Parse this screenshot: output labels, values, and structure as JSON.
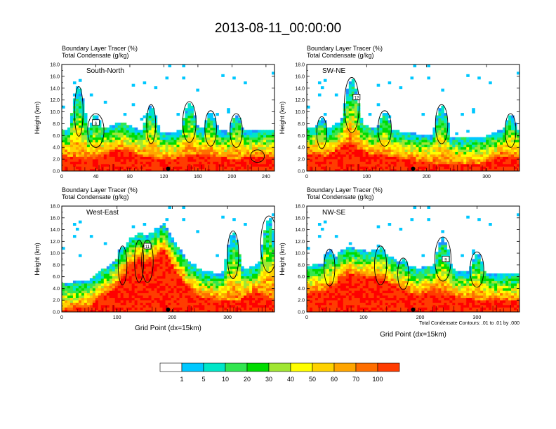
{
  "title": "2013-08-11_00:00:00",
  "colors": {
    "levels": [
      "#ffffff",
      "#1e90ff",
      "#00c8ff",
      "#00e6c8",
      "#32e650",
      "#00dc00",
      "#a0e632",
      "#ffff00",
      "#ffd200",
      "#ffa500",
      "#ff6e00",
      "#ff3c00",
      "#ff0000"
    ],
    "contour": "#000000",
    "background": "#ffffff"
  },
  "chart_data": [
    {
      "type": "heatmap",
      "panel_label": "South-North",
      "header_line1": "Boundary Layer Tracer   (%)",
      "header_line2": "Total Condensate   (g/kg)",
      "ylabel": "Height (km)",
      "xlabel": "",
      "xlim": [
        0,
        250
      ],
      "ylim": [
        0,
        18
      ],
      "xticks": [
        "0",
        "40",
        "80",
        "120",
        "160",
        "200",
        "240"
      ],
      "xtick_values": [
        0,
        40,
        80,
        120,
        160,
        200,
        240
      ],
      "yticks": [
        "0.0",
        "2.0",
        "4.0",
        "6.0",
        "8.0",
        "10.0",
        "12.0",
        "14.0",
        "16.0",
        "18.0"
      ],
      "boundary_layer_height_km": [
        2.6,
        2.4,
        2.2,
        2.0,
        2.2,
        2.8,
        3.4,
        3.8,
        3.2,
        2.6,
        2.4,
        2.2,
        2.0,
        2.1,
        2.4,
        2.6,
        2.8,
        2.6,
        2.4,
        2.3,
        2.2,
        2.2,
        2.3,
        2.4,
        2.5,
        2.4
      ],
      "plume_centers": [
        20,
        40,
        105,
        150,
        175,
        205,
        230
      ],
      "plume_tops_km": [
        14,
        9.5,
        11,
        11.5,
        10,
        9.5,
        3.5
      ],
      "marker_label": "6",
      "marker_x": 40,
      "marker_y_km": 8.2
    },
    {
      "type": "heatmap",
      "panel_label": "SW-NE",
      "header_line1": "Boundary Layer Tracer   (%)",
      "header_line2": "Total Condensate   (g/kg)",
      "ylabel": "Height (km)",
      "xlabel": "",
      "xlim": [
        0,
        355
      ],
      "ylim": [
        0,
        18
      ],
      "xticks": [
        "0",
        "100",
        "200",
        "300"
      ],
      "xtick_values": [
        0,
        100,
        200,
        300
      ],
      "yticks": [
        "0.0",
        "2.0",
        "4.0",
        "6.0",
        "8.0",
        "10.0",
        "12.0",
        "14.0",
        "16.0",
        "18.0"
      ],
      "boundary_layer_height_km": [
        3.0,
        2.8,
        2.6,
        3.2,
        4.2,
        4.6,
        3.8,
        3.2,
        2.8,
        2.6,
        2.4,
        2.2,
        2.0,
        1.8,
        1.6,
        1.4,
        1.4,
        1.4,
        1.2,
        1.2,
        1.2,
        1.4,
        2.0,
        2.6,
        2.4,
        2.4
      ],
      "plume_centers": [
        25,
        75,
        130,
        225,
        340
      ],
      "plume_tops_km": [
        9,
        15.5,
        10,
        11,
        9.5
      ],
      "marker_label": "12",
      "marker_x": 83,
      "marker_y_km": 12.5
    },
    {
      "type": "heatmap",
      "panel_label": "West-East",
      "header_line1": "Boundary Layer Tracer   (%)",
      "header_line2": "Total Condensate   (g/kg)",
      "ylabel": "Height (km)",
      "xlabel": "Grid Point (dx=15km)",
      "xlim": [
        0,
        385
      ],
      "ylim": [
        0,
        18
      ],
      "xticks": [
        "0",
        "100",
        "200",
        "300"
      ],
      "xtick_values": [
        0,
        100,
        200,
        300
      ],
      "yticks": [
        "0.0",
        "2.0",
        "4.0",
        "6.0",
        "8.0",
        "10.0",
        "12.0",
        "14.0",
        "16.0",
        "18.0"
      ],
      "boundary_layer_height_km": [
        0.6,
        0.6,
        0.8,
        1.0,
        2.0,
        3.0,
        4.0,
        6.0,
        8.0,
        9.0,
        8.5,
        9.5,
        10.5,
        8.0,
        6.0,
        4.0,
        3.0,
        2.4,
        2.2,
        2.0,
        2.0,
        2.2,
        3.0,
        3.6,
        2.8,
        2.2
      ],
      "plume_centers": [
        110,
        140,
        155,
        310,
        375
      ],
      "plume_tops_km": [
        11,
        12,
        12,
        13.5,
        16
      ],
      "marker_label": "11",
      "marker_x": 155,
      "marker_y_km": 11.2
    },
    {
      "type": "heatmap",
      "panel_label": "NW-SE",
      "header_line1": "Boundary Layer Tracer   (%)",
      "header_line2": "Total Condensate   (g/kg)",
      "ylabel": "Height (km)",
      "xlabel": "Grid Point (dx=15km)",
      "footnote": "Total Condensate Contours: .01 to .01 by .000",
      "xlim": [
        0,
        375
      ],
      "ylim": [
        0,
        18
      ],
      "xticks": [
        "0",
        "100",
        "200",
        "300"
      ],
      "xtick_values": [
        0,
        100,
        200,
        300
      ],
      "yticks": [
        "0.0",
        "2.0",
        "4.0",
        "6.0",
        "8.0",
        "10.0",
        "12.0",
        "14.0",
        "16.0",
        "18.0"
      ],
      "boundary_layer_height_km": [
        3.4,
        3.6,
        3.8,
        4.6,
        6.0,
        6.6,
        6.2,
        5.8,
        6.0,
        5.6,
        4.8,
        4.0,
        3.4,
        3.0,
        3.2,
        3.6,
        3.2,
        2.8,
        2.4,
        2.4,
        2.2,
        2.2,
        2.0,
        2.0,
        2.0,
        2.0
      ],
      "plume_centers": [
        40,
        130,
        170,
        240,
        300
      ],
      "plume_tops_km": [
        10.5,
        11,
        9,
        12.5,
        10
      ],
      "marker_label": "9",
      "marker_x": 245,
      "marker_y_km": 9.0
    }
  ],
  "colorbar": {
    "labels": [
      "1",
      "5",
      "10",
      "20",
      "30",
      "40",
      "50",
      "60",
      "70",
      "100"
    ]
  }
}
